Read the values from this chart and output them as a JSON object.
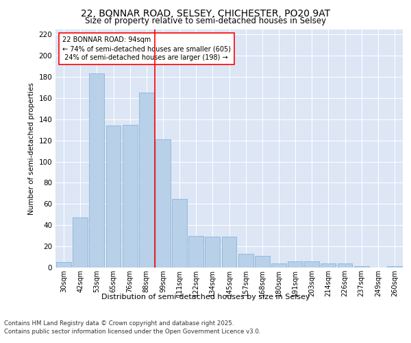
{
  "title1": "22, BONNAR ROAD, SELSEY, CHICHESTER, PO20 9AT",
  "title2": "Size of property relative to semi-detached houses in Selsey",
  "xlabel": "Distribution of semi-detached houses by size in Selsey",
  "ylabel": "Number of semi-detached properties",
  "categories": [
    "30sqm",
    "42sqm",
    "53sqm",
    "65sqm",
    "76sqm",
    "88sqm",
    "99sqm",
    "111sqm",
    "122sqm",
    "134sqm",
    "145sqm",
    "157sqm",
    "168sqm",
    "180sqm",
    "191sqm",
    "203sqm",
    "214sqm",
    "226sqm",
    "237sqm",
    "249sqm",
    "260sqm"
  ],
  "values": [
    5,
    47,
    183,
    134,
    135,
    165,
    121,
    65,
    30,
    29,
    29,
    13,
    11,
    4,
    6,
    6,
    4,
    4,
    1,
    0,
    1
  ],
  "bar_color": "#b8d0e8",
  "bar_edge_color": "#7aaed6",
  "redline_index": 6,
  "property_sqm": 94,
  "pct_smaller": 74,
  "count_smaller": 605,
  "pct_larger": 24,
  "count_larger": 198,
  "annotation_label": "22 BONNAR ROAD: 94sqm",
  "ylim": [
    0,
    225
  ],
  "yticks": [
    0,
    20,
    40,
    60,
    80,
    100,
    120,
    140,
    160,
    180,
    200,
    220
  ],
  "background_color": "#dce6f5",
  "footer_line1": "Contains HM Land Registry data © Crown copyright and database right 2025.",
  "footer_line2": "Contains public sector information licensed under the Open Government Licence v3.0."
}
